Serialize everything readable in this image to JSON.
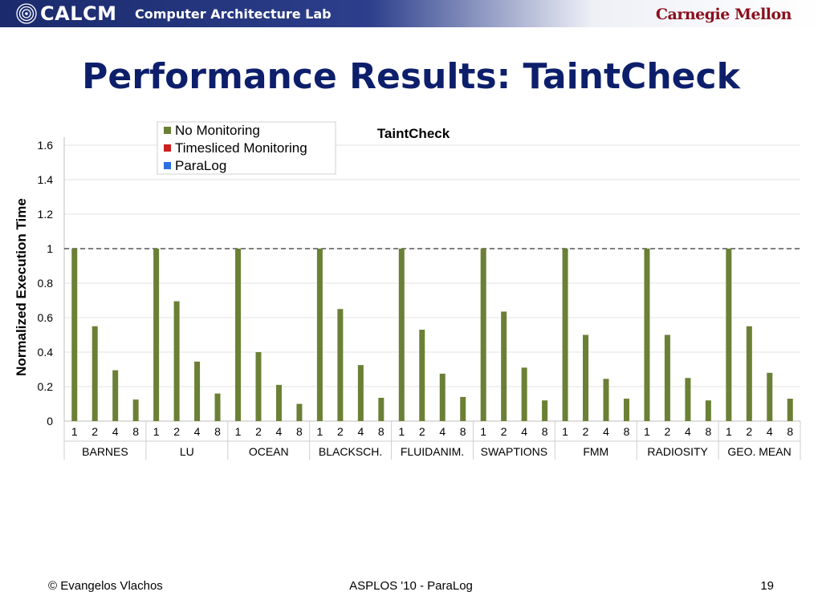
{
  "banner": {
    "brand": "CALCM",
    "lab": "Computer Architecture Lab",
    "university": "Carnegie Mellon",
    "logo_icon": "concentric-circles-icon"
  },
  "slide": {
    "title": "Performance Results: TaintCheck"
  },
  "footer": {
    "author": "© Evangelos Vlachos",
    "venue": "ASPLOS '10 - ParaLog",
    "page": "19"
  },
  "chart_data": {
    "type": "bar",
    "title": "TaintCheck",
    "ylabel": "Normalized Execution Time",
    "xlabel": "",
    "ylim": [
      0,
      1.6
    ],
    "yticks": [
      "0",
      "0.2",
      "0.4",
      "0.6",
      "0.8",
      "1",
      "1.2",
      "1.4",
      "1.6"
    ],
    "reference_line": 1,
    "legend_position": "top-left",
    "groups": [
      "BARNES",
      "LU",
      "OCEAN",
      "BLACKSCH.",
      "FLUIDANIM.",
      "SWAPTIONS",
      "FMM",
      "RADIOSITY",
      "GEO. MEAN"
    ],
    "subcategories": [
      "1",
      "2",
      "4",
      "8"
    ],
    "series": [
      {
        "name": "No Monitoring",
        "color": "#6b8035",
        "values": [
          [
            1.0,
            0.55,
            0.295,
            0.125
          ],
          [
            1.0,
            0.695,
            0.345,
            0.16
          ],
          [
            1.0,
            0.4,
            0.21,
            0.1
          ],
          [
            1.0,
            0.65,
            0.325,
            0.135
          ],
          [
            1.0,
            0.53,
            0.275,
            0.14
          ],
          [
            1.0,
            0.635,
            0.31,
            0.12
          ],
          [
            1.0,
            0.5,
            0.245,
            0.13
          ],
          [
            1.0,
            0.5,
            0.25,
            0.12
          ],
          [
            1.0,
            0.55,
            0.28,
            0.13
          ]
        ]
      },
      {
        "name": "Timesliced Monitoring",
        "color": "#cc1f1f",
        "values": []
      },
      {
        "name": "ParaLog",
        "color": "#2e6fe0",
        "values": []
      }
    ]
  }
}
